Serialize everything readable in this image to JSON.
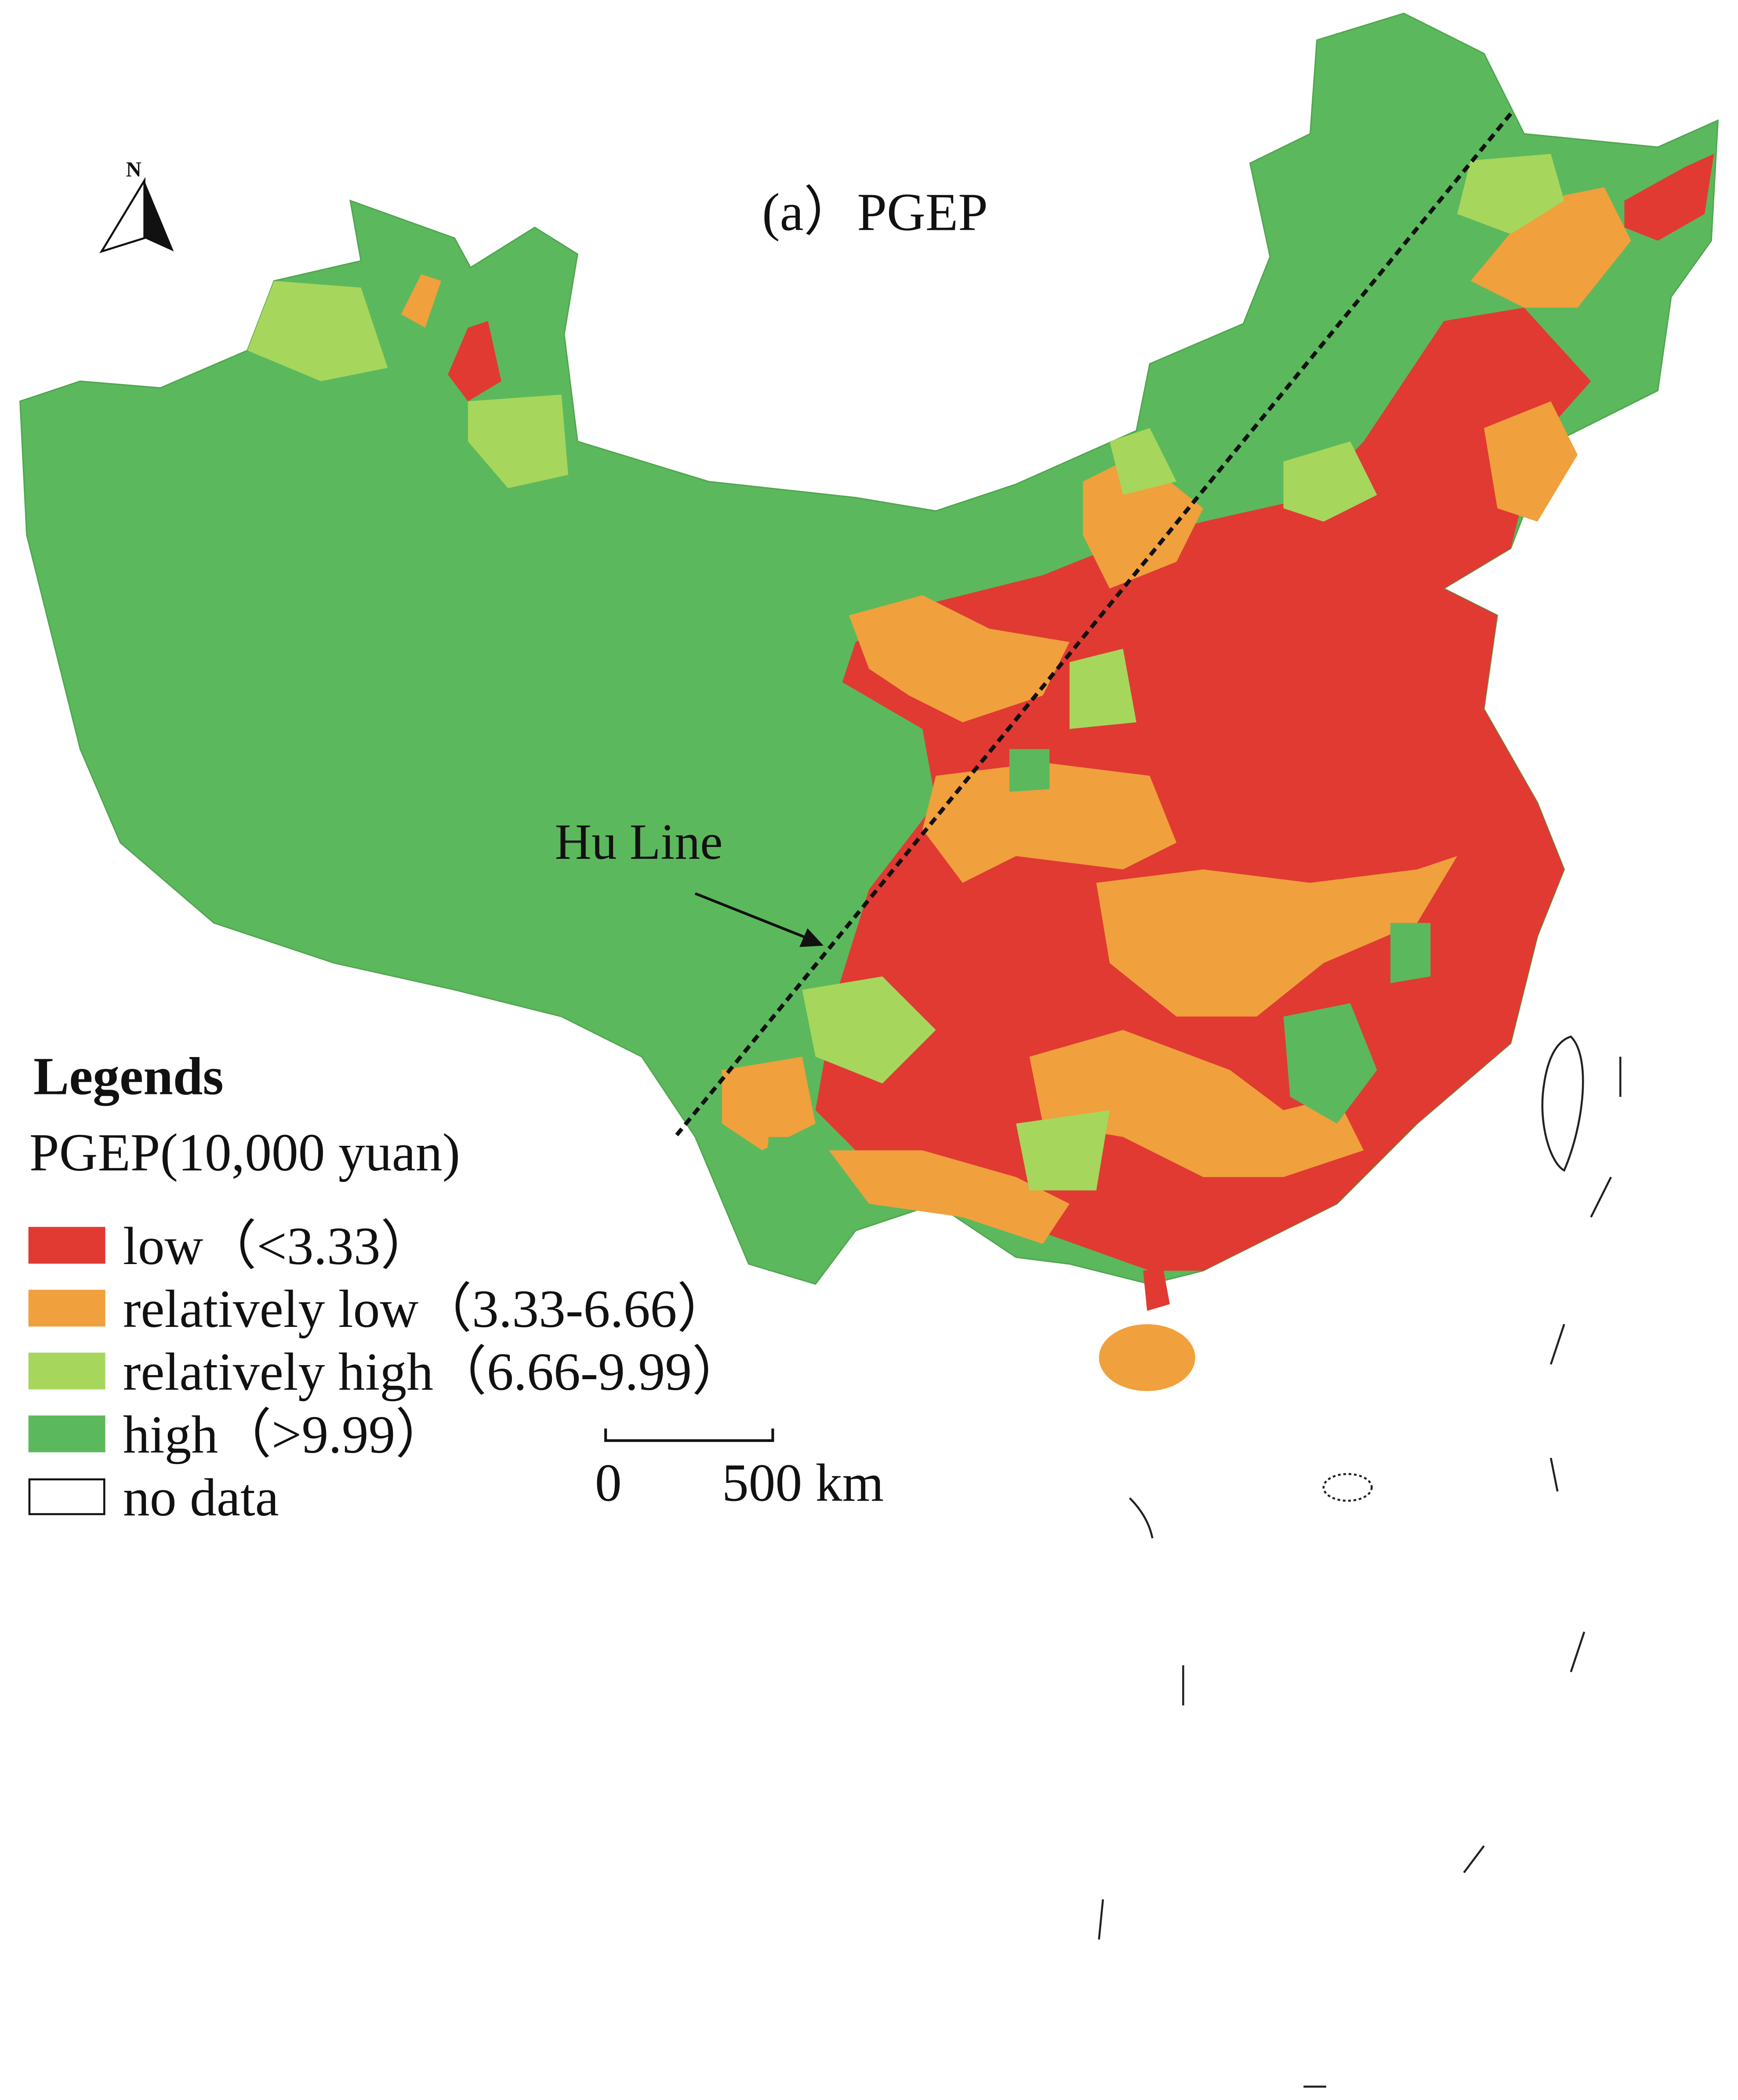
{
  "title": "(a）PGEP",
  "north_arrow": "N",
  "annotation": "Hu  Line",
  "legend": {
    "title": "Legends",
    "subtitle": "PGEP(10,000  yuan)",
    "items": [
      {
        "label": "low（<3.33）",
        "color": "#e03a33"
      },
      {
        "label": "relatively low（3.33-6.66）",
        "color": "#f0a03c"
      },
      {
        "label": "relatively high（6.66-9.99）",
        "color": "#a6d65c"
      },
      {
        "label": "high（>9.99）",
        "color": "#5cb85c"
      },
      {
        "label": "no  data",
        "color": "#ffffff"
      }
    ]
  },
  "scale_bar": {
    "start": "0",
    "end": "500 km"
  }
}
